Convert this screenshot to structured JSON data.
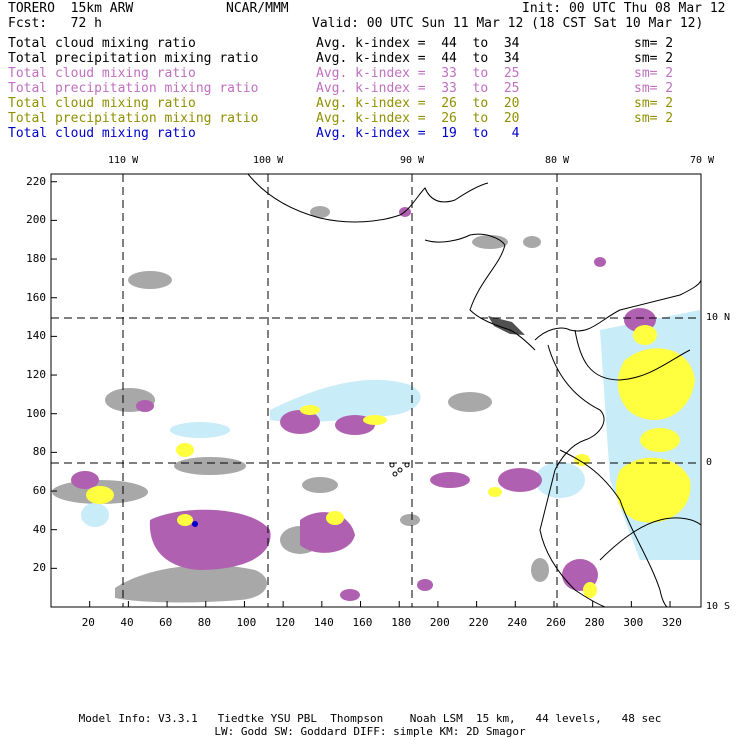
{
  "header": {
    "model": "TORERO  15km ARW",
    "center": "NCAR/MMM",
    "init": "Init: 00 UTC Thu 08 Mar 12",
    "fcst": "Fcst:   72 h",
    "valid": "Valid: 00 UTC Sun 11 Mar 12 (18 CST Sat 10 Mar 12)"
  },
  "legend": [
    {
      "field": "Total cloud mixing ratio",
      "index": "Avg. k-index =  44  to  34",
      "sm": "sm= 2",
      "color": "#000000"
    },
    {
      "field": "Total precipitation mixing ratio",
      "index": "Avg. k-index =  44  to  34",
      "sm": "sm= 2",
      "color": "#000000"
    },
    {
      "field": "Total cloud mixing ratio",
      "index": "Avg. k-index =  33  to  25",
      "sm": "sm= 2",
      "color": "#c070c0"
    },
    {
      "field": "Total precipitation mixing ratio",
      "index": "Avg. k-index =  33  to  25",
      "sm": "sm= 2",
      "color": "#c070c0"
    },
    {
      "field": "Total cloud mixing ratio",
      "index": "Avg. k-index =  26  to  20",
      "sm": "sm= 2",
      "color": "#909000"
    },
    {
      "field": "Total precipitation mixing ratio",
      "index": "Avg. k-index =  26  to  20",
      "sm": "sm= 2",
      "color": "#909000"
    },
    {
      "field": "Total cloud mixing ratio",
      "index": "Avg. k-index =  19  to   4",
      "sm": "",
      "color": "#0000cc"
    }
  ],
  "map": {
    "lon_labels": [
      "110 W",
      "100 W",
      "90 W",
      "80 W",
      "70 W"
    ],
    "lat_labels": [
      "10 N",
      "0",
      "10 S"
    ],
    "x_ticks": [
      "20",
      "40",
      "60",
      "80",
      "100",
      "120",
      "140",
      "160",
      "180",
      "200",
      "220",
      "240",
      "260",
      "280",
      "300",
      "320"
    ],
    "y_ticks": [
      "220",
      "200",
      "180",
      "160",
      "140",
      "120",
      "100",
      "80",
      "60",
      "40",
      "20"
    ],
    "colors": {
      "gray": "#a8a8a8",
      "purple": "#b060b0",
      "yellow": "#ffff40",
      "lightblue": "#c8ecf8",
      "blue": "#0000cc"
    }
  },
  "footer": {
    "line1": "Model Info: V3.3.1   Tiedtke YSU PBL  Thompson    Noah LSM  15 km,   44 levels,   48 sec",
    "line2": "LW: Godd SW: Goddard DIFF: simple KM: 2D Smagor"
  }
}
